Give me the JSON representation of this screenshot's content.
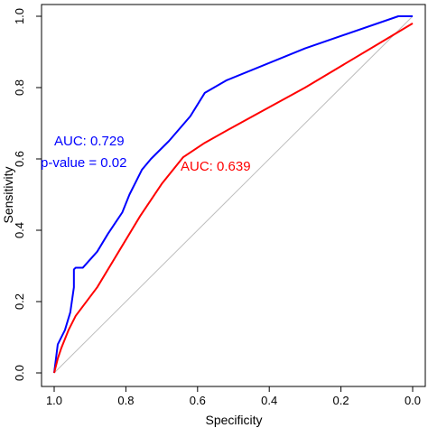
{
  "chart_data": {
    "type": "line",
    "title": "",
    "xlabel": "Specificity",
    "ylabel": "Sensitivity",
    "xlim": [
      1.0,
      0.0
    ],
    "ylim": [
      0.0,
      1.0
    ],
    "x_reversed": true,
    "x_ticks": [
      "1.0",
      "0.8",
      "0.6",
      "0.4",
      "0.2",
      "0.0"
    ],
    "y_ticks": [
      "0.0",
      "0.2",
      "0.4",
      "0.6",
      "0.8",
      "1.0"
    ],
    "grid": false,
    "reference_line": {
      "from": [
        1.0,
        0.0
      ],
      "to": [
        0.0,
        1.0
      ],
      "color": "#bdbdbd"
    },
    "series": [
      {
        "color": "#0000ff",
        "points": [
          [
            1.0,
            0.0
          ],
          [
            0.99,
            0.08
          ],
          [
            0.97,
            0.12
          ],
          [
            0.955,
            0.17
          ],
          [
            0.945,
            0.24
          ],
          [
            0.945,
            0.29
          ],
          [
            0.94,
            0.295
          ],
          [
            0.92,
            0.295
          ],
          [
            0.88,
            0.34
          ],
          [
            0.85,
            0.39
          ],
          [
            0.81,
            0.45
          ],
          [
            0.79,
            0.5
          ],
          [
            0.77,
            0.54
          ],
          [
            0.755,
            0.57
          ],
          [
            0.73,
            0.6
          ],
          [
            0.68,
            0.65
          ],
          [
            0.62,
            0.72
          ],
          [
            0.58,
            0.785
          ],
          [
            0.52,
            0.82
          ],
          [
            0.3,
            0.91
          ],
          [
            0.04,
            1.0
          ],
          [
            0.0,
            1.0
          ]
        ]
      },
      {
        "color": "#ff0000",
        "points": [
          [
            1.0,
            0.0
          ],
          [
            0.99,
            0.04
          ],
          [
            0.98,
            0.07
          ],
          [
            0.96,
            0.12
          ],
          [
            0.94,
            0.16
          ],
          [
            0.88,
            0.24
          ],
          [
            0.82,
            0.34
          ],
          [
            0.76,
            0.44
          ],
          [
            0.7,
            0.53
          ],
          [
            0.64,
            0.605
          ],
          [
            0.58,
            0.645
          ],
          [
            0.5,
            0.69
          ],
          [
            0.3,
            0.8
          ],
          [
            0.1,
            0.92
          ],
          [
            0.0,
            0.98
          ]
        ]
      }
    ],
    "annotations": [
      {
        "text": "AUC: 0.729",
        "color": "#0000ff"
      },
      {
        "text": "p-value = 0.02",
        "color": "#0000ff"
      },
      {
        "text": "AUC: 0.639",
        "color": "#ff0000"
      }
    ]
  }
}
